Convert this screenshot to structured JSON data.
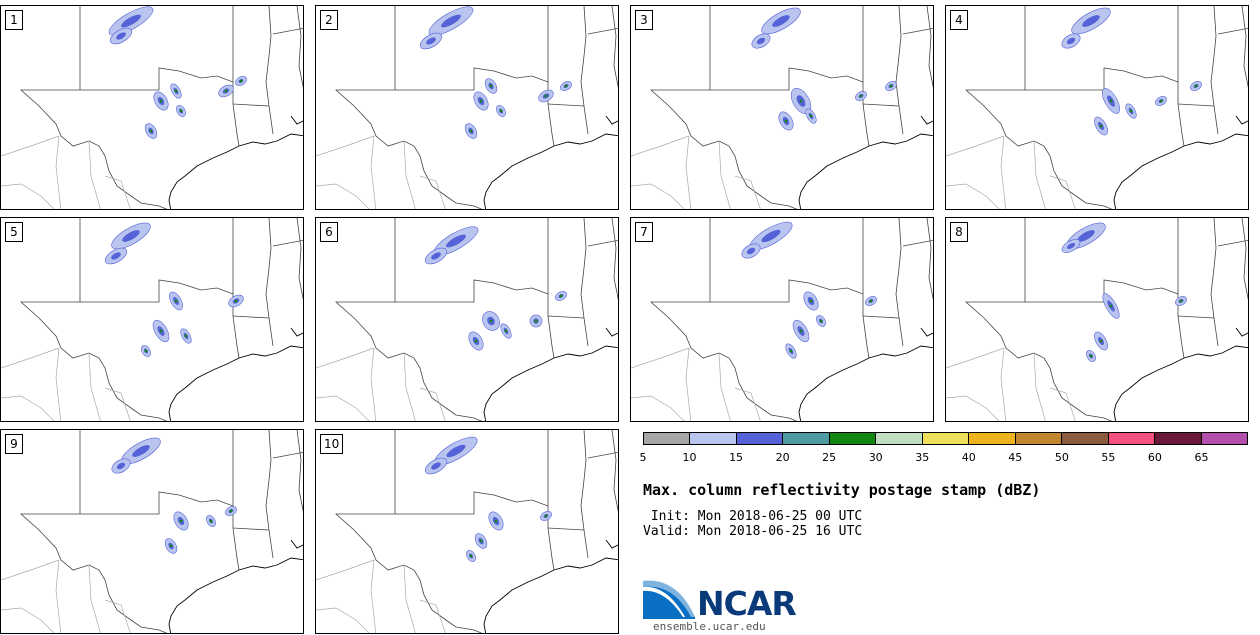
{
  "panels": [
    {
      "label": "1"
    },
    {
      "label": "2"
    },
    {
      "label": "3"
    },
    {
      "label": "4"
    },
    {
      "label": "5"
    },
    {
      "label": "6"
    },
    {
      "label": "7"
    },
    {
      "label": "8"
    },
    {
      "label": "9"
    },
    {
      "label": "10"
    }
  ],
  "colorbar": {
    "colors": [
      "#a6a6a6",
      "#b9c5ee",
      "#5663d8",
      "#4f9ba2",
      "#12870f",
      "#c0dfc0",
      "#efe05c",
      "#eeb21f",
      "#c2862f",
      "#8c5a3d",
      "#f4517f",
      "#6a1839",
      "#b44ead"
    ],
    "ticks": [
      "5",
      "10",
      "15",
      "20",
      "25",
      "30",
      "35",
      "40",
      "45",
      "50",
      "55",
      "60",
      "65"
    ]
  },
  "title": "Max. column reflectivity postage stamp (dBZ)",
  "init_line": " Init: Mon 2018-06-25 00 UTC",
  "valid_line": "Valid: Mon 2018-06-25 16 UTC",
  "logo": {
    "name": "NCAR",
    "url": "ensemble.ucar.edu"
  }
}
